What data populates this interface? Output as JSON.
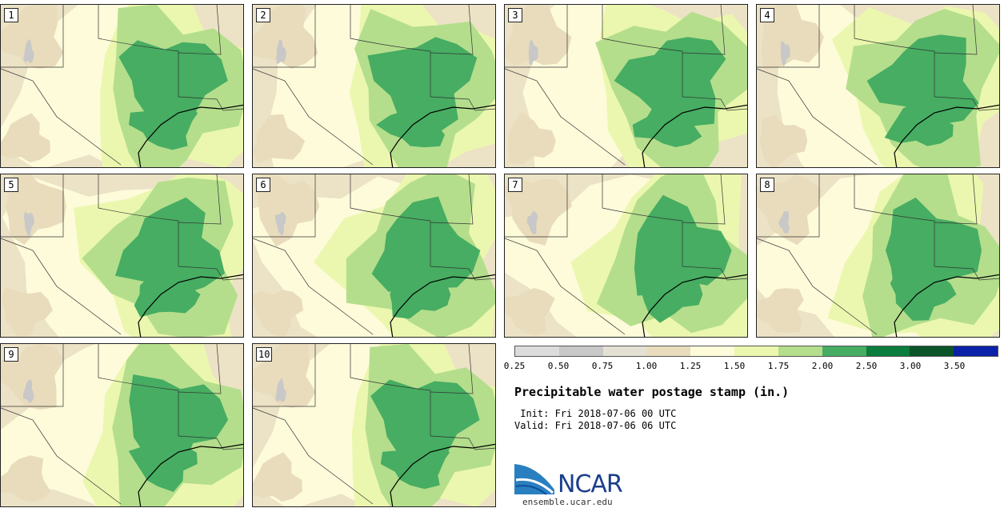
{
  "panels": [
    {
      "label": "1"
    },
    {
      "label": "2"
    },
    {
      "label": "3"
    },
    {
      "label": "4"
    },
    {
      "label": "5"
    },
    {
      "label": "6"
    },
    {
      "label": "7"
    },
    {
      "label": "8"
    },
    {
      "label": "9"
    },
    {
      "label": "10"
    }
  ],
  "legend": {
    "colors": [
      "#dcdcdc",
      "#c8c8c8",
      "#e4e0d4",
      "#e8dcbc",
      "#fdfbda",
      "#ebf7ae",
      "#b4de8c",
      "#46ad62",
      "#0b7d3c",
      "#0b5428",
      "#0a22a8"
    ],
    "ticks": [
      "0.25",
      "0.50",
      "0.75",
      "1.00",
      "1.25",
      "1.50",
      "1.75",
      "2.00",
      "2.50",
      "3.00",
      "3.50"
    ]
  },
  "title": "Precipitable water postage stamp (in.)",
  "init_line": " Init: Fri 2018-07-06 00 UTC",
  "valid_line": "Valid: Fri 2018-07-06 06 UTC",
  "logo_text": "NCAR",
  "site": "ensemble.ucar.edu"
}
